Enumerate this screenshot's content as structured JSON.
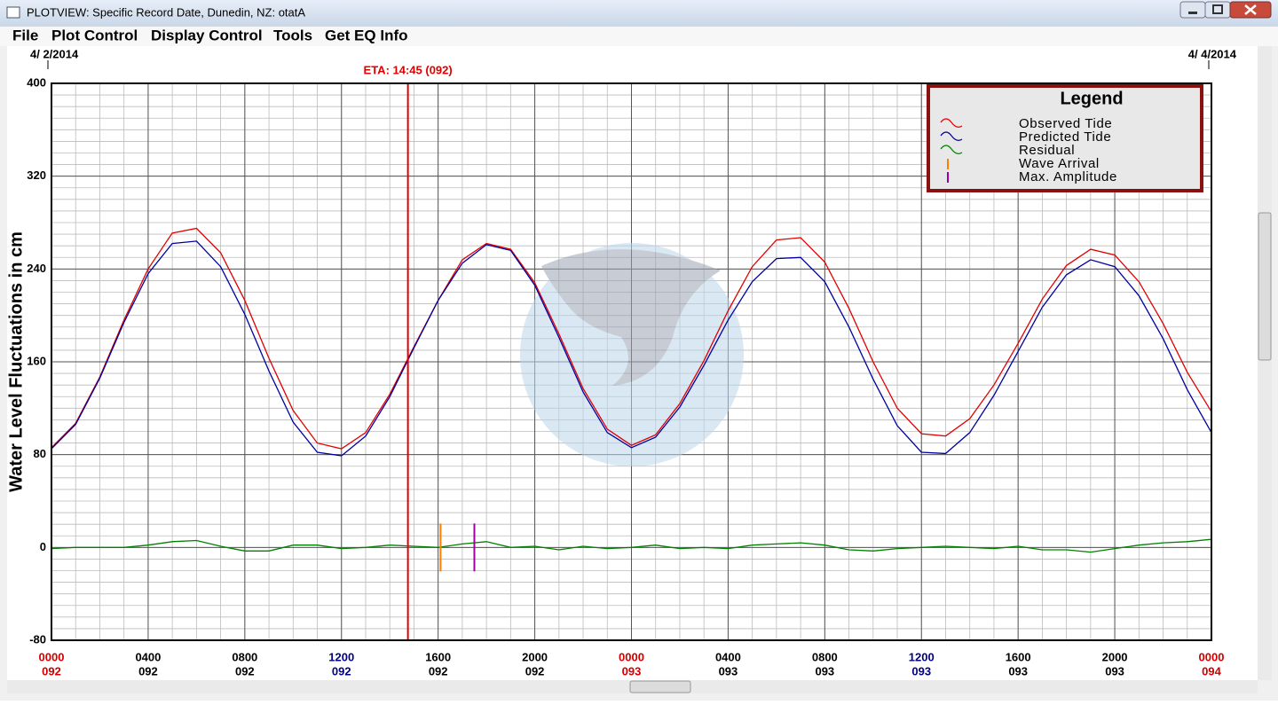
{
  "window": {
    "title": "PLOTVIEW: Specific Record Date, Dunedin, NZ: otatA",
    "menu": [
      "File",
      "Plot Control",
      "Display Control",
      "Tools",
      "Get EQ Info"
    ]
  },
  "chart_data": {
    "type": "line",
    "date_start": "4/ 2/2014",
    "date_end": "4/ 4/2014",
    "ylabel": "Water Level Fluctuations in cm",
    "xlim": [
      0,
      48
    ],
    "ylim": [
      -80,
      400
    ],
    "yticks": [
      -80,
      0,
      80,
      160,
      240,
      320,
      400
    ],
    "xticks": [
      {
        "value": 0,
        "label": "0000"
      },
      {
        "value": 4,
        "label": "0400"
      },
      {
        "value": 8,
        "label": "0800"
      },
      {
        "value": 12,
        "label": "1200"
      },
      {
        "value": 16,
        "label": "1600"
      },
      {
        "value": 20,
        "label": "2000"
      },
      {
        "value": 24,
        "label": "0000"
      },
      {
        "value": 28,
        "label": "0400"
      },
      {
        "value": 32,
        "label": "0800"
      },
      {
        "value": 36,
        "label": "1200"
      },
      {
        "value": 40,
        "label": "1600"
      },
      {
        "value": 44,
        "label": "2000"
      },
      {
        "value": 48,
        "label": "0000"
      }
    ],
    "xtick_days": [
      "092",
      "092",
      "092",
      "092",
      "092",
      "092",
      "093",
      "093",
      "093",
      "093",
      "093",
      "093",
      "094"
    ],
    "xtick_colors": [
      "#d00000",
      "#000000",
      "#000000",
      "#000080",
      "#000000",
      "#000000",
      "#d00000",
      "#000000",
      "#000000",
      "#000080",
      "#000000",
      "#000000",
      "#d00000"
    ],
    "grid": true,
    "x": [
      0,
      1,
      2,
      3,
      4,
      5,
      6,
      7,
      8,
      9,
      10,
      11,
      12,
      13,
      14,
      15,
      16,
      17,
      18,
      19,
      20,
      21,
      22,
      23,
      24,
      25,
      26,
      27,
      28,
      29,
      30,
      31,
      32,
      33,
      34,
      35,
      36,
      37,
      38,
      39,
      40,
      41,
      42,
      43,
      44,
      45,
      46,
      47,
      48
    ],
    "series": [
      {
        "name": "Observed Tide",
        "color": "#e00000",
        "values": [
          86,
          107,
          147,
          196,
          240,
          271,
          275,
          254,
          213,
          163,
          118,
          90,
          85,
          99,
          132,
          173,
          213,
          248,
          262,
          257,
          228,
          184,
          137,
          102,
          88,
          97,
          124,
          161,
          204,
          242,
          265,
          267,
          246,
          206,
          160,
          120,
          98,
          96,
          111,
          140,
          176,
          214,
          243,
          257,
          252,
          229,
          193,
          151,
          117
        ]
      },
      {
        "name": "Predicted Tide",
        "color": "#0000a0",
        "values": [
          85,
          106,
          146,
          194,
          236,
          262,
          264,
          242,
          201,
          152,
          108,
          82,
          79,
          96,
          130,
          172,
          213,
          245,
          261,
          256,
          226,
          181,
          134,
          99,
          86,
          95,
          121,
          157,
          196,
          229,
          249,
          250,
          229,
          190,
          145,
          105,
          82,
          81,
          99,
          131,
          169,
          207,
          235,
          248,
          242,
          217,
          180,
          136,
          99
        ]
      },
      {
        "name": "Residual",
        "color": "#008000",
        "values": [
          -1,
          0,
          0,
          0,
          2,
          5,
          6,
          1,
          -3,
          -3,
          2,
          2,
          -1,
          0,
          2,
          1,
          0,
          3,
          5,
          0,
          1,
          -2,
          1,
          -1,
          0,
          2,
          -1,
          0,
          -1,
          2,
          3,
          4,
          2,
          -2,
          -3,
          -1,
          0,
          1,
          0,
          -1,
          1,
          -2,
          -2,
          -4,
          -1,
          2,
          4,
          5,
          7
        ]
      }
    ],
    "markers": [
      {
        "name": "Wave Arrival",
        "color": "#ff8000",
        "x": 16.1
      },
      {
        "name": "Max. Amplitude",
        "color": "#a000a0",
        "x": 17.5
      }
    ],
    "annotations": [
      {
        "text": "ETA: 14:45 (092)",
        "x": 14.75,
        "color": "#e00000"
      }
    ],
    "legend": {
      "title": "Legend",
      "position": "upper right"
    }
  }
}
